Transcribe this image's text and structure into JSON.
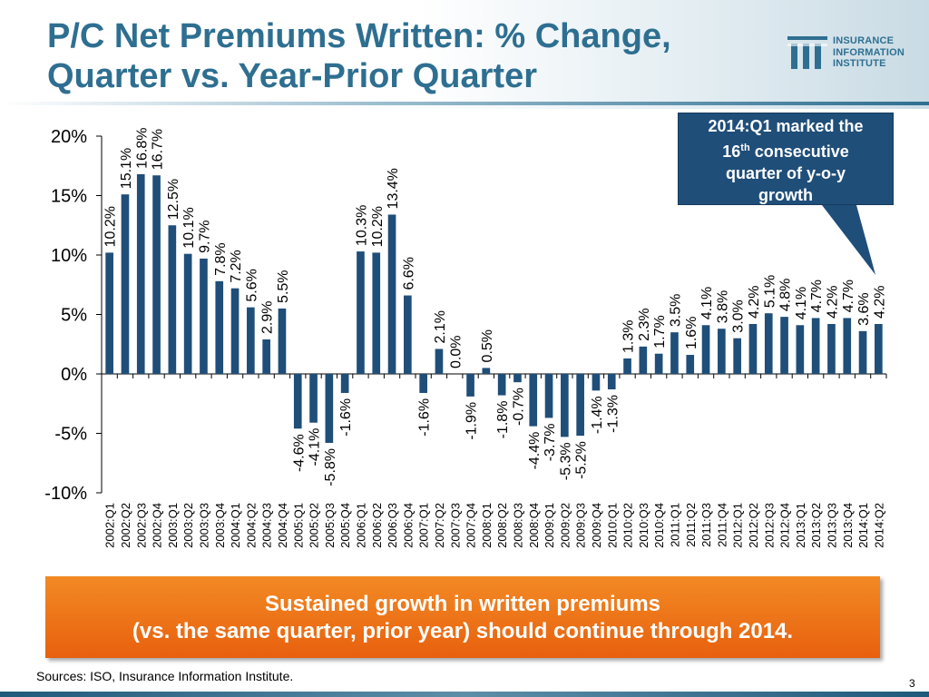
{
  "header": {
    "title_line1": "P/C Net Premiums Written: % Change,",
    "title_line2": "Quarter vs. Year-Prior Quarter"
  },
  "logo": {
    "line1": "INSURANCE",
    "line2": "INFORMATION",
    "line3": "INSTITUTE",
    "icon": "iii-logo-mark",
    "color": "#2e6f91"
  },
  "callout": {
    "line1": "2014:Q1 marked the",
    "line2_num": "16",
    "line2_sup": "th",
    "line2_rest": " consecutive",
    "line3": "quarter of y-o-y",
    "line4": "growth",
    "color": "#1f4e79"
  },
  "banner": {
    "line1": "Sustained growth in written premiums",
    "line2": "(vs. the same quarter, prior year) should continue through 2014.",
    "color": "#ee6f18"
  },
  "footer": {
    "sources": "Sources: ISO, Insurance Information Institute.",
    "page_number": "3"
  },
  "chart_data": {
    "type": "bar",
    "title": "",
    "xlabel": "",
    "ylabel": "",
    "ylim": [
      -10,
      20
    ],
    "yticks": [
      -10,
      -5,
      0,
      5,
      10,
      15,
      20
    ],
    "ytick_labels": [
      "-10%",
      "-5%",
      "0%",
      "5%",
      "10%",
      "15%",
      "20%"
    ],
    "bar_color": "#1f4e79",
    "grid": false,
    "categories": [
      "2002:Q1",
      "2002:Q2",
      "2002:Q3",
      "2002:Q4",
      "2003:Q1",
      "2003:Q2",
      "2003:Q3",
      "2003:Q4",
      "2004:Q1",
      "2004:Q2",
      "2004:Q3",
      "2004:Q4",
      "2005:Q1",
      "2005:Q2",
      "2005:Q3",
      "2005:Q4",
      "2006:Q1",
      "2006:Q2",
      "2006:Q3",
      "2006:Q4",
      "2007:Q1",
      "2007:Q2",
      "2007:Q3",
      "2007:Q4",
      "2008:Q1",
      "2008:Q2",
      "2008:Q3",
      "2008:Q4",
      "2009:Q1",
      "2009:Q2",
      "2009:Q3",
      "2009:Q4",
      "2010:Q1",
      "2010:Q2",
      "2010:Q3",
      "2010:Q4",
      "2011:Q1",
      "2011:Q2",
      "2011:Q3",
      "2011:Q4",
      "2012:Q1",
      "2012:Q2",
      "2012:Q3",
      "2012:Q4",
      "2013:Q1",
      "2013:Q2",
      "2013:Q3",
      "2013:Q4",
      "2014:Q1",
      "2014:Q2"
    ],
    "values": [
      10.2,
      15.1,
      16.8,
      16.7,
      12.5,
      10.1,
      9.7,
      7.8,
      7.2,
      5.6,
      2.9,
      5.5,
      -4.6,
      -4.1,
      -5.8,
      -1.6,
      10.3,
      10.2,
      13.4,
      6.6,
      -1.6,
      2.1,
      0.0,
      -1.9,
      0.5,
      -1.8,
      -0.7,
      -4.4,
      -3.7,
      -5.3,
      -5.2,
      -1.4,
      -1.3,
      1.3,
      2.3,
      1.7,
      3.5,
      1.6,
      4.1,
      3.8,
      3.0,
      4.2,
      5.1,
      4.8,
      4.1,
      4.7,
      4.2,
      4.7,
      3.6,
      4.2
    ],
    "data_labels": [
      "10.2%",
      "15.1%",
      "16.8%",
      "16.7%",
      "12.5%",
      "10.1%",
      "9.7%",
      "7.8%",
      "7.2%",
      "5.6%",
      "2.9%",
      "5.5%",
      "-4.6%",
      "-4.1%",
      "-5.8%",
      "-1.6%",
      "10.3%",
      "10.2%",
      "13.4%",
      "6.6%",
      "-1.6%",
      "2.1%",
      "0.0%",
      "-1.9%",
      "0.5%",
      "-1.8%",
      "-0.7%",
      "-4.4%",
      "-3.7%",
      "-5.3%",
      "-5.2%",
      "-1.4%",
      "-1.3%",
      "1.3%",
      "2.3%",
      "1.7%",
      "3.5%",
      "1.6%",
      "4.1%",
      "3.8%",
      "3.0%",
      "4.2%",
      "5.1%",
      "4.8%",
      "4.1%",
      "4.7%",
      "4.2%",
      "4.7%",
      "3.6%",
      "4.2%"
    ]
  }
}
